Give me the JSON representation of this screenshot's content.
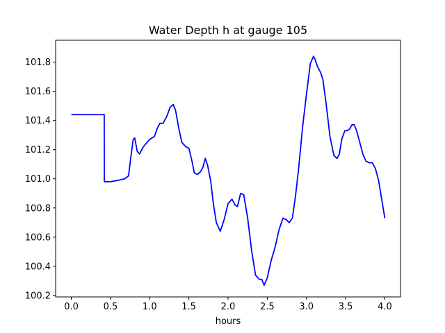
{
  "chart_data": {
    "type": "line",
    "title": "Water Depth h at gauge 105",
    "xlabel": "hours",
    "ylabel": "",
    "xlim": [
      -0.2,
      4.2
    ],
    "ylim": [
      100.19,
      101.95
    ],
    "xticks": [
      0.0,
      0.5,
      1.0,
      1.5,
      2.0,
      2.5,
      3.0,
      3.5,
      4.0
    ],
    "xtick_labels": [
      "0.0",
      "0.5",
      "1.0",
      "1.5",
      "2.0",
      "2.5",
      "3.0",
      "3.5",
      "4.0"
    ],
    "yticks": [
      100.2,
      100.4,
      100.6,
      100.8,
      101.0,
      101.2,
      101.4,
      101.6,
      101.8
    ],
    "ytick_labels": [
      "100.2",
      "100.4",
      "100.6",
      "100.8",
      "101.0",
      "101.2",
      "101.4",
      "101.6",
      "101.8"
    ],
    "grid": false,
    "color": "#0000ff",
    "series": [
      {
        "x": [
          0.0,
          0.2,
          0.3,
          0.42,
          0.421,
          0.5,
          0.6,
          0.68,
          0.73,
          0.76,
          0.79,
          0.81,
          0.84,
          0.87,
          0.92,
          1.0,
          1.06,
          1.1,
          1.13,
          1.17,
          1.22,
          1.26,
          1.3,
          1.33,
          1.37,
          1.41,
          1.46,
          1.5,
          1.54,
          1.57,
          1.61,
          1.65,
          1.68,
          1.71,
          1.74,
          1.78,
          1.81,
          1.85,
          1.9,
          1.95,
          2.0,
          2.05,
          2.09,
          2.12,
          2.16,
          2.2,
          2.25,
          2.3,
          2.35,
          2.4,
          2.43,
          2.46,
          2.5,
          2.55,
          2.6,
          2.65,
          2.7,
          2.74,
          2.78,
          2.82,
          2.86,
          2.9,
          2.95,
          3.0,
          3.05,
          3.09,
          3.11,
          3.14,
          3.18,
          3.21,
          3.25,
          3.3,
          3.35,
          3.39,
          3.42,
          3.45,
          3.49,
          3.52,
          3.55,
          3.58,
          3.61,
          3.64,
          3.68,
          3.72,
          3.76,
          3.8,
          3.84,
          3.88,
          3.92,
          3.96,
          4.0
        ],
        "y": [
          101.44,
          101.44,
          101.44,
          101.44,
          100.98,
          100.98,
          100.99,
          101.0,
          101.02,
          101.15,
          101.27,
          101.28,
          101.19,
          101.17,
          101.22,
          101.27,
          101.29,
          101.35,
          101.38,
          101.38,
          101.43,
          101.49,
          101.51,
          101.47,
          101.35,
          101.25,
          101.22,
          101.21,
          101.12,
          101.04,
          101.03,
          101.05,
          101.08,
          101.14,
          101.09,
          100.98,
          100.84,
          100.7,
          100.64,
          100.72,
          100.83,
          100.86,
          100.82,
          100.81,
          100.9,
          100.89,
          100.73,
          100.51,
          100.34,
          100.31,
          100.31,
          100.27,
          100.32,
          100.44,
          100.53,
          100.65,
          100.73,
          100.72,
          100.7,
          100.73,
          100.88,
          101.07,
          101.35,
          101.58,
          101.79,
          101.84,
          101.82,
          101.77,
          101.73,
          101.68,
          101.52,
          101.29,
          101.16,
          101.14,
          101.17,
          101.27,
          101.33,
          101.33,
          101.34,
          101.37,
          101.37,
          101.33,
          101.25,
          101.17,
          101.12,
          101.11,
          101.11,
          101.07,
          100.99,
          100.86,
          100.73
        ]
      }
    ]
  }
}
